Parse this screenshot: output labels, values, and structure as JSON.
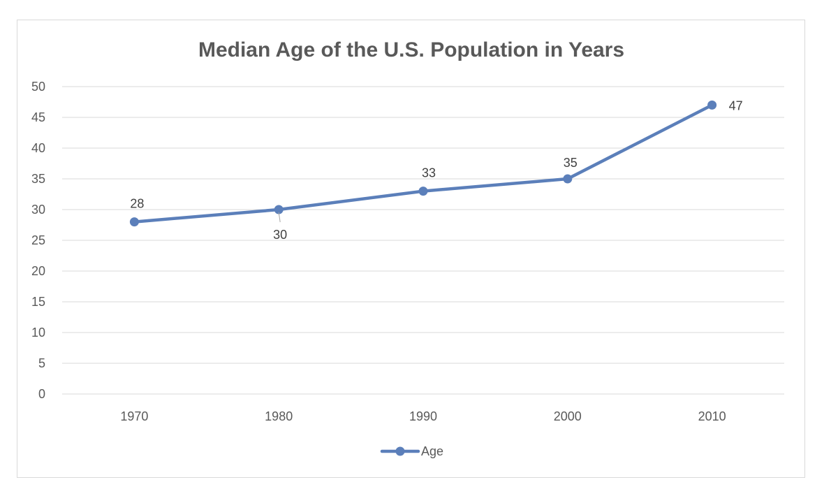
{
  "chart_data": {
    "type": "line",
    "title": "Median Age of the U.S. Population in Years",
    "xlabel": "",
    "ylabel": "",
    "categories": [
      "1970",
      "1980",
      "1990",
      "2000",
      "2010"
    ],
    "series": [
      {
        "name": "Age",
        "values": [
          28,
          30,
          33,
          35,
          47
        ],
        "color": "#5b7fba"
      }
    ],
    "data_labels": [
      "28",
      "30",
      "33",
      "35",
      "47"
    ],
    "ylim": [
      0,
      50
    ],
    "yticks": [
      "0",
      "5",
      "10",
      "15",
      "20",
      "25",
      "30",
      "35",
      "40",
      "45",
      "50"
    ],
    "grid": true,
    "gridline_color": "#d9d9d9",
    "legend_position": "bottom"
  }
}
